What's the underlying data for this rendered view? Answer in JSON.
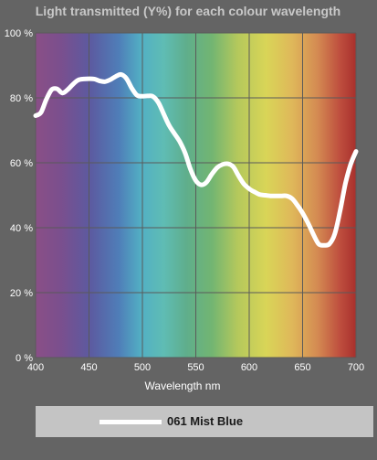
{
  "chart_data": {
    "type": "line",
    "title": "Light transmitted (Y%) for each colour wavelength",
    "xlabel": "Wavelength nm",
    "ylabel": "",
    "xlim": [
      400,
      700
    ],
    "ylim": [
      0,
      100
    ],
    "xticks": [
      400,
      450,
      500,
      550,
      600,
      650,
      700
    ],
    "xtick_labels": [
      "400",
      "450",
      "500",
      "550",
      "600",
      "650",
      "700"
    ],
    "yticks": [
      0,
      20,
      40,
      60,
      80,
      100
    ],
    "ytick_labels": [
      "0 %",
      "20 %",
      "40 %",
      "60 %",
      "80 %",
      "100 %"
    ],
    "grid": true,
    "background": "visible spectrum gradient",
    "legend_position": "bottom",
    "series": [
      {
        "name": "061 Mist Blue",
        "color": "#ffffff",
        "x": [
          400,
          405,
          410,
          415,
          420,
          425,
          430,
          435,
          440,
          445,
          450,
          455,
          460,
          465,
          470,
          475,
          480,
          485,
          490,
          495,
          500,
          505,
          510,
          515,
          520,
          525,
          530,
          535,
          540,
          545,
          550,
          555,
          560,
          565,
          570,
          575,
          580,
          585,
          590,
          595,
          600,
          605,
          610,
          615,
          620,
          625,
          630,
          635,
          640,
          645,
          650,
          655,
          660,
          665,
          670,
          675,
          680,
          685,
          690,
          695,
          700
        ],
        "y": [
          74.5,
          75.5,
          79.5,
          82.5,
          82.8,
          81.5,
          82.5,
          84.2,
          85.5,
          85.8,
          85.9,
          85.8,
          85.2,
          85.0,
          85.6,
          86.6,
          87.2,
          86.0,
          83.0,
          80.8,
          80.5,
          80.6,
          80.4,
          78.5,
          75.0,
          71.5,
          69.0,
          66.5,
          63.0,
          58.0,
          54.5,
          53.2,
          54.0,
          56.5,
          58.5,
          59.5,
          59.7,
          58.8,
          56.0,
          53.5,
          52.0,
          51.0,
          50.2,
          50.0,
          49.8,
          49.8,
          49.8,
          49.8,
          49.0,
          47.0,
          44.5,
          41.5,
          38.0,
          35.0,
          34.6,
          35.0,
          38.0,
          45.0,
          53.5,
          59.5,
          63.5
        ]
      }
    ]
  },
  "legend": {
    "label": "061 Mist Blue",
    "swatch_color": "#ffffff"
  }
}
